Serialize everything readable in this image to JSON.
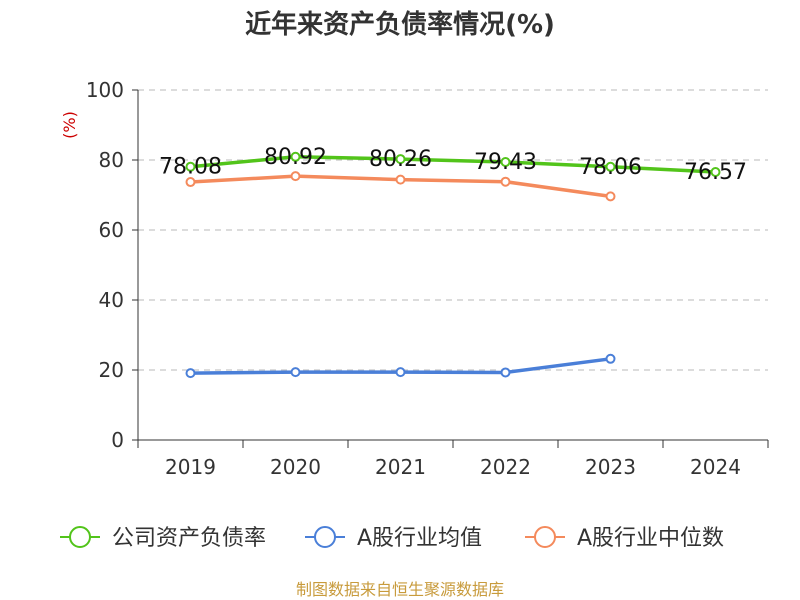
{
  "title": "近年来资产负债率情况(%)",
  "source": "制图数据来自恒生聚源数据库",
  "colors": {
    "company": "#52c41a",
    "industry_avg": "#4a7fd8",
    "industry_median": "#f48a5c",
    "grid": "#c8c8c8",
    "axis": "#333333",
    "unit": "#cc0000",
    "text": "#333333"
  },
  "chart_data": {
    "type": "line",
    "unit_label": "(%)",
    "categories": [
      "2019",
      "2020",
      "2021",
      "2022",
      "2023",
      "2024"
    ],
    "ylim": [
      0,
      100
    ],
    "yticks": [
      0,
      20,
      40,
      60,
      80,
      100
    ],
    "grid": true,
    "legend_position": "bottom",
    "series": [
      {
        "name": "公司资产负债率",
        "color_key": "company",
        "values": [
          78.08,
          80.92,
          80.26,
          79.43,
          78.06,
          76.57
        ],
        "labels": [
          "78.08",
          "80.92",
          "80.26",
          "79.43",
          "78.06",
          "76.57"
        ]
      },
      {
        "name": "A股行业均值",
        "color_key": "industry_avg",
        "values": [
          19.1,
          19.4,
          19.4,
          19.3,
          23.2,
          null
        ]
      },
      {
        "name": "A股行业中位数",
        "color_key": "industry_median",
        "values": [
          73.7,
          75.4,
          74.4,
          73.8,
          69.6,
          null
        ]
      }
    ]
  }
}
